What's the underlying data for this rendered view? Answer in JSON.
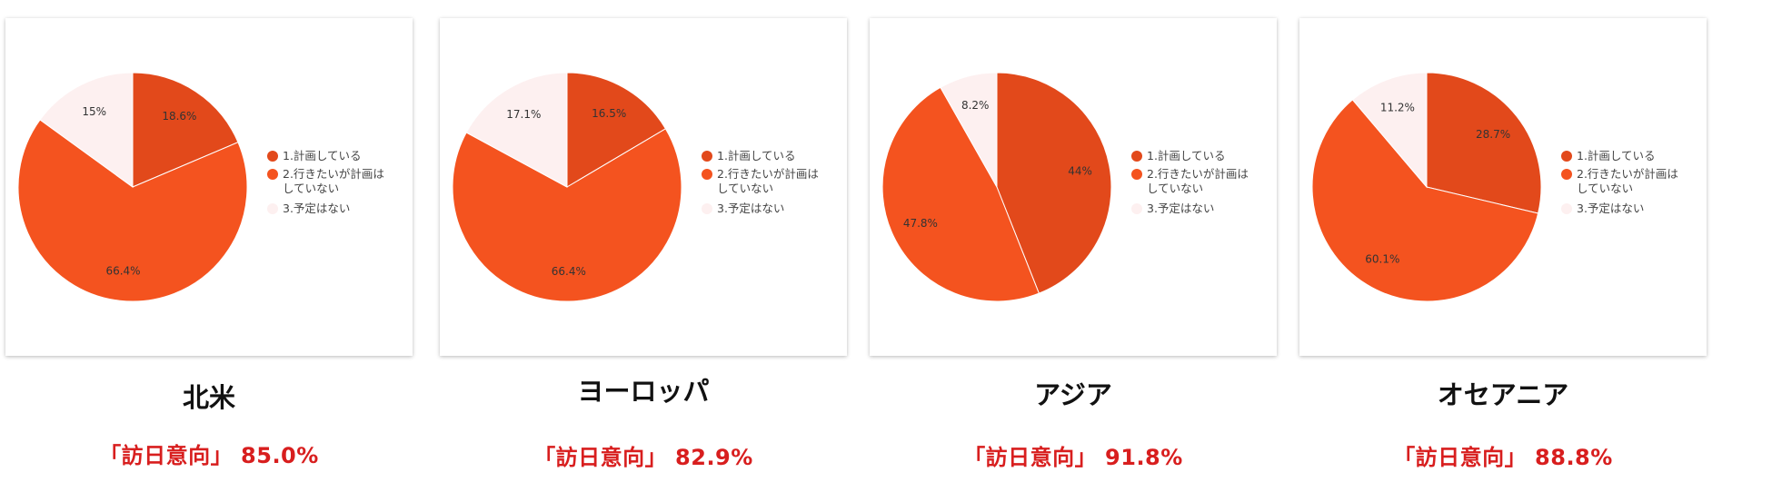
{
  "colors": {
    "planning": "#e2491b",
    "want_not_planned": "#f4531f",
    "no_plan": "#fdf0f0",
    "intent_text": "#d81e1e"
  },
  "legend": [
    "1.計画している",
    "2.行きたいが計画はしていない",
    "3.予定はない"
  ],
  "chart_data": [
    {
      "type": "pie",
      "title": "",
      "labels": [
        "1.計画している",
        "2.行きたいが計画はしていない",
        "3.予定はない"
      ],
      "values": [
        18.6,
        66.4,
        15.0
      ],
      "value_labels": [
        "18.6%",
        "66.4%",
        "15%"
      ],
      "legend_position": "right"
    },
    {
      "type": "pie",
      "title": "",
      "labels": [
        "1.計画している",
        "2.行きたいが計画はしていない",
        "3.予定はない"
      ],
      "values": [
        16.5,
        66.4,
        17.1
      ],
      "value_labels": [
        "16.5%",
        "66.4%",
        "17.1%"
      ],
      "legend_position": "right"
    },
    {
      "type": "pie",
      "title": "",
      "labels": [
        "1.計画している",
        "2.行きたいが計画はしていない",
        "3.予定はない"
      ],
      "values": [
        44.0,
        47.8,
        8.2
      ],
      "value_labels": [
        "44%",
        "47.8%",
        "8.2%"
      ],
      "legend_position": "right"
    },
    {
      "type": "pie",
      "title": "",
      "labels": [
        "1.計画している",
        "2.行きたいが計画はしていない",
        "3.予定はない"
      ],
      "values": [
        28.7,
        60.1,
        11.2
      ],
      "value_labels": [
        "28.7%",
        "60.1%",
        "11.2%"
      ],
      "legend_position": "right"
    }
  ],
  "panels": [
    {
      "region": "北米",
      "intent": "「訪日意向」 85.0%"
    },
    {
      "region": "ヨーロッパ",
      "intent": "「訪日意向」 82.9%"
    },
    {
      "region": "アジア",
      "intent": "「訪日意向」 91.8%"
    },
    {
      "region": "オセアニア",
      "intent": "「訪日意向」 88.8%"
    }
  ]
}
